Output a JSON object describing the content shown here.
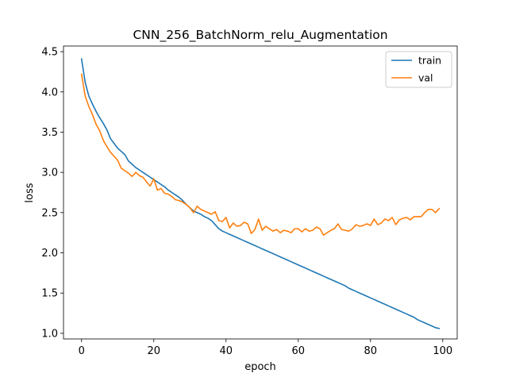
{
  "chart_data": {
    "type": "line",
    "title": "CNN_256_BatchNorm_relu_Augmentation",
    "xlabel": "epoch",
    "ylabel": "loss",
    "xlim": [
      -5,
      104
    ],
    "ylim": [
      0.93,
      4.57
    ],
    "xticks": [
      0,
      20,
      40,
      60,
      80,
      100
    ],
    "yticks": [
      1.0,
      1.5,
      2.0,
      2.5,
      3.0,
      3.5,
      4.0,
      4.5
    ],
    "legend_position": "top-right",
    "series": [
      {
        "name": "train",
        "color": "#1f77b4",
        "values": [
          4.41,
          4.12,
          3.95,
          3.85,
          3.76,
          3.68,
          3.61,
          3.53,
          3.42,
          3.36,
          3.3,
          3.26,
          3.22,
          3.14,
          3.1,
          3.06,
          3.03,
          3.0,
          2.97,
          2.94,
          2.91,
          2.88,
          2.85,
          2.82,
          2.78,
          2.75,
          2.72,
          2.69,
          2.65,
          2.6,
          2.56,
          2.52,
          2.5,
          2.48,
          2.45,
          2.43,
          2.4,
          2.35,
          2.3,
          2.27,
          2.25,
          2.23,
          2.21,
          2.19,
          2.17,
          2.15,
          2.13,
          2.11,
          2.09,
          2.07,
          2.05,
          2.03,
          2.01,
          1.99,
          1.97,
          1.95,
          1.93,
          1.91,
          1.89,
          1.87,
          1.85,
          1.83,
          1.81,
          1.79,
          1.77,
          1.75,
          1.73,
          1.71,
          1.69,
          1.67,
          1.65,
          1.63,
          1.61,
          1.59,
          1.56,
          1.54,
          1.52,
          1.5,
          1.48,
          1.46,
          1.44,
          1.42,
          1.4,
          1.38,
          1.36,
          1.34,
          1.32,
          1.3,
          1.28,
          1.26,
          1.24,
          1.22,
          1.2,
          1.17,
          1.15,
          1.13,
          1.11,
          1.09,
          1.07,
          1.06
        ]
      },
      {
        "name": "val",
        "color": "#ff7f0e",
        "values": [
          4.22,
          3.95,
          3.82,
          3.72,
          3.6,
          3.52,
          3.4,
          3.32,
          3.25,
          3.2,
          3.15,
          3.05,
          3.02,
          2.99,
          2.95,
          3.0,
          2.96,
          2.94,
          2.88,
          2.83,
          2.92,
          2.78,
          2.8,
          2.74,
          2.73,
          2.7,
          2.66,
          2.65,
          2.63,
          2.6,
          2.56,
          2.5,
          2.58,
          2.54,
          2.52,
          2.5,
          2.48,
          2.51,
          2.4,
          2.39,
          2.44,
          2.31,
          2.37,
          2.33,
          2.34,
          2.38,
          2.36,
          2.24,
          2.29,
          2.42,
          2.28,
          2.33,
          2.3,
          2.27,
          2.29,
          2.25,
          2.28,
          2.27,
          2.25,
          2.3,
          2.3,
          2.26,
          2.3,
          2.27,
          2.28,
          2.32,
          2.3,
          2.22,
          2.25,
          2.28,
          2.3,
          2.36,
          2.29,
          2.28,
          2.27,
          2.3,
          2.35,
          2.33,
          2.34,
          2.36,
          2.34,
          2.42,
          2.35,
          2.37,
          2.42,
          2.4,
          2.44,
          2.35,
          2.41,
          2.43,
          2.44,
          2.41,
          2.45,
          2.45,
          2.45,
          2.5,
          2.54,
          2.54,
          2.5,
          2.55
        ]
      }
    ]
  }
}
